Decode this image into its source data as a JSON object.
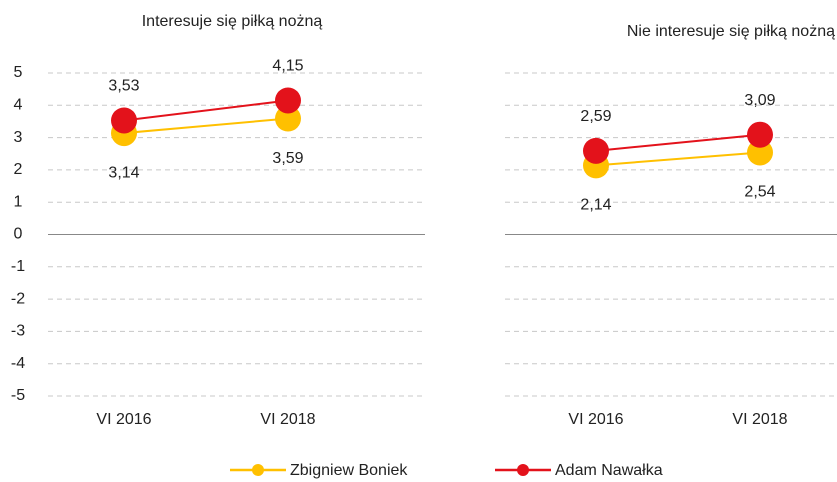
{
  "chart_data": [
    {
      "type": "line",
      "title": "Interesuje się piłką nożną",
      "categories": [
        "VI 2016",
        "VI 2018"
      ],
      "series": [
        {
          "name": "Zbigniew Boniek",
          "color": "#ffc000",
          "values": [
            3.14,
            3.59
          ],
          "value_labels": [
            "3,14",
            "3,59"
          ]
        },
        {
          "name": "Adam Nawałka",
          "color": "#e3121b",
          "values": [
            3.53,
            4.15
          ],
          "value_labels": [
            "3,53",
            "4,15"
          ]
        }
      ],
      "ylim": [
        -5,
        5
      ],
      "yticks": [
        -5,
        -4,
        -3,
        -2,
        -1,
        0,
        1,
        2,
        3,
        4,
        5
      ],
      "grid": true,
      "show_ytick_labels": true
    },
    {
      "type": "line",
      "title": "Nie interesuje się piłką nożną",
      "categories": [
        "VI 2016",
        "VI 2018"
      ],
      "series": [
        {
          "name": "Zbigniew Boniek",
          "color": "#ffc000",
          "values": [
            2.14,
            2.54
          ],
          "value_labels": [
            "2,14",
            "2,54"
          ]
        },
        {
          "name": "Adam Nawałka",
          "color": "#e3121b",
          "values": [
            2.59,
            3.09
          ],
          "value_labels": [
            "2,59",
            "3,09"
          ]
        }
      ],
      "ylim": [
        -5,
        5
      ],
      "yticks": [
        -5,
        -4,
        -3,
        -2,
        -1,
        0,
        1,
        2,
        3,
        4,
        5
      ],
      "grid": true,
      "show_ytick_labels": false
    }
  ]
}
